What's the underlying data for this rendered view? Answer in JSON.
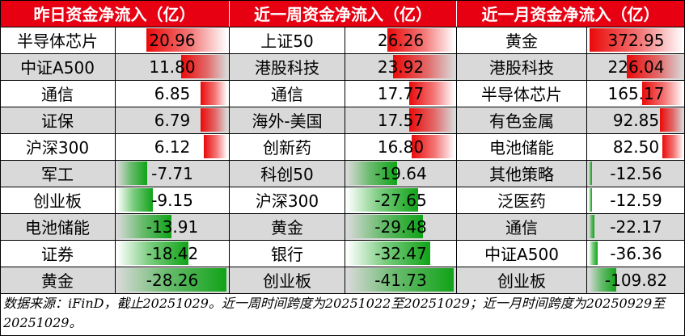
{
  "chart_data": {
    "type": "table",
    "panels": [
      {
        "title": "昨日资金净流入（亿）",
        "rows": [
          {
            "name": "半导体芯片",
            "value": 20.96,
            "text": "20.96"
          },
          {
            "name": "中证A500",
            "value": 11.8,
            "text": "11.80"
          },
          {
            "name": "通信",
            "value": 6.85,
            "text": "6.85"
          },
          {
            "name": "证保",
            "value": 6.79,
            "text": "6.79"
          },
          {
            "name": "沪深300",
            "value": 6.12,
            "text": "6.12"
          },
          {
            "name": "军工",
            "value": -7.71,
            "text": "-7.71"
          },
          {
            "name": "创业板",
            "value": -9.15,
            "text": "-9.15"
          },
          {
            "name": "电池储能",
            "value": -13.91,
            "text": "-13.91"
          },
          {
            "name": "证券",
            "value": -18.42,
            "text": "-18.42"
          },
          {
            "name": "黄金",
            "value": -28.26,
            "text": "-28.26"
          }
        ]
      },
      {
        "title": "近一周资金净流入（亿）",
        "rows": [
          {
            "name": "上证50",
            "value": 26.26,
            "text": "26.26"
          },
          {
            "name": "港股科技",
            "value": 23.92,
            "text": "23.92"
          },
          {
            "name": "通信",
            "value": 17.77,
            "text": "17.77"
          },
          {
            "name": "海外-美国",
            "value": 17.57,
            "text": "17.57"
          },
          {
            "name": "创新药",
            "value": 16.8,
            "text": "16.80"
          },
          {
            "name": "科创50",
            "value": -19.64,
            "text": "-19.64"
          },
          {
            "name": "沪深300",
            "value": -27.65,
            "text": "-27.65"
          },
          {
            "name": "黄金",
            "value": -29.48,
            "text": "-29.48"
          },
          {
            "name": "银行",
            "value": -32.47,
            "text": "-32.47"
          },
          {
            "name": "创业板",
            "value": -41.73,
            "text": "-41.73"
          }
        ]
      },
      {
        "title": "近一月资金净流入（亿）",
        "rows": [
          {
            "name": "黄金",
            "value": 372.95,
            "text": "372.95"
          },
          {
            "name": "港股科技",
            "value": 226.04,
            "text": "226.04"
          },
          {
            "name": "半导体芯片",
            "value": 165.17,
            "text": "165.17"
          },
          {
            "name": "有色金属",
            "value": 92.85,
            "text": "92.85"
          },
          {
            "name": "电池储能",
            "value": 82.5,
            "text": "82.50"
          },
          {
            "name": "其他策略",
            "value": -12.56,
            "text": "-12.56"
          },
          {
            "name": "泛医药",
            "value": -12.59,
            "text": "-12.59"
          },
          {
            "name": "通信",
            "value": -22.17,
            "text": "-22.17"
          },
          {
            "name": "中证A500",
            "value": -36.36,
            "text": "-36.36"
          },
          {
            "name": "创业板",
            "value": -109.82,
            "text": "-109.82"
          }
        ]
      }
    ],
    "colors": {
      "header_bg": "#e60012",
      "header_text": "#ffffff",
      "alt_row": "#d9d9d9",
      "positive_bar": "#ea0a0a",
      "negative_bar": "#10a318"
    }
  },
  "footnote": "数据来源：iFinD，截止20251029。近一周时间跨度为20251022至20251029；近一月时间跨度为20250929至20251029。"
}
